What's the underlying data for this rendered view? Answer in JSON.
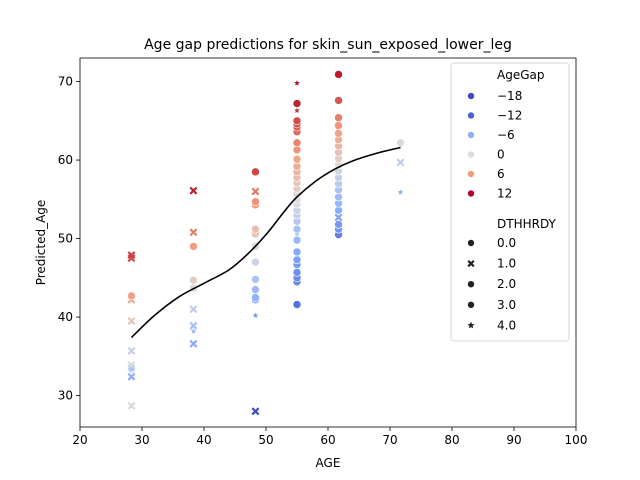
{
  "chart_data": {
    "type": "scatter",
    "title": "Age gap predictions for skin_sun_exposed_lower_leg",
    "xlabel": "AGE",
    "ylabel": "Predicted_Age",
    "xlim": [
      20,
      100
    ],
    "ylim": [
      26,
      73
    ],
    "xticks": [
      20,
      30,
      40,
      50,
      60,
      70,
      80,
      90,
      100
    ],
    "yticks": [
      30,
      40,
      50,
      60,
      70
    ],
    "grid": false,
    "legend": {
      "placement": "top-right",
      "hue_title": "AgeGap",
      "hue_entries": [
        {
          "label": "−18",
          "color": "#3b4cc0"
        },
        {
          "label": "−12",
          "color": "#4a63d3"
        },
        {
          "label": "−6",
          "color": "#8db0fe"
        },
        {
          "label": "0",
          "color": "#dcdddd"
        },
        {
          "label": "6",
          "color": "#f49a7b"
        },
        {
          "label": "12",
          "color": "#b40426"
        }
      ],
      "style_title": "DTHHRDY",
      "style_entries": [
        {
          "label": "0.0",
          "marker": "circle"
        },
        {
          "label": "1.0",
          "marker": "x"
        },
        {
          "label": "2.0",
          "marker": "circle"
        },
        {
          "label": "3.0",
          "marker": "circle"
        },
        {
          "label": "4.0",
          "marker": "star"
        }
      ]
    },
    "trend_line": {
      "color": "#000000",
      "points": [
        [
          28.3,
          37.4
        ],
        [
          32,
          40.2
        ],
        [
          36,
          42.6
        ],
        [
          40,
          44.3
        ],
        [
          44,
          46.0
        ],
        [
          47,
          48.0
        ],
        [
          50,
          50.5
        ],
        [
          53,
          53.5
        ],
        [
          55,
          55.3
        ],
        [
          58,
          57.3
        ],
        [
          61,
          58.8
        ],
        [
          64,
          59.9
        ],
        [
          68,
          60.9
        ],
        [
          71.7,
          61.6
        ]
      ]
    },
    "points": [
      {
        "x": 28.3,
        "y": 28.7,
        "gap": -0.4,
        "m": "x"
      },
      {
        "x": 28.3,
        "y": 32.4,
        "gap": -5.9,
        "m": "x"
      },
      {
        "x": 28.3,
        "y": 33.4,
        "gap": -4.1,
        "m": "circle"
      },
      {
        "x": 28.3,
        "y": 33.6,
        "gap": -3.8,
        "m": "circle"
      },
      {
        "x": 28.3,
        "y": 33.9,
        "gap": -0.5,
        "m": "x"
      },
      {
        "x": 28.3,
        "y": 35.7,
        "gap": -1.7,
        "m": "x"
      },
      {
        "x": 28.3,
        "y": 39.5,
        "gap": 2.1,
        "m": "x"
      },
      {
        "x": 28.3,
        "y": 42.2,
        "gap": 4.8,
        "m": "x"
      },
      {
        "x": 28.3,
        "y": 42.7,
        "gap": 5.3,
        "m": "circle"
      },
      {
        "x": 28.3,
        "y": 47.5,
        "gap": 10.1,
        "m": "x"
      },
      {
        "x": 28.3,
        "y": 47.9,
        "gap": 10.5,
        "m": "x"
      },
      {
        "x": 38.3,
        "y": 36.6,
        "gap": -6.5,
        "m": "x"
      },
      {
        "x": 38.3,
        "y": 38.2,
        "gap": -5.0,
        "m": "star"
      },
      {
        "x": 38.3,
        "y": 38.9,
        "gap": -4.3,
        "m": "x"
      },
      {
        "x": 38.3,
        "y": 41.0,
        "gap": -2.2,
        "m": "x"
      },
      {
        "x": 38.3,
        "y": 43.7,
        "gap": 0.5,
        "m": "circle"
      },
      {
        "x": 38.3,
        "y": 44.7,
        "gap": 1.5,
        "m": "circle"
      },
      {
        "x": 38.3,
        "y": 49.0,
        "gap": 5.8,
        "m": "circle"
      },
      {
        "x": 38.3,
        "y": 50.8,
        "gap": 7.6,
        "m": "x"
      },
      {
        "x": 38.3,
        "y": 56.1,
        "gap": 12.9,
        "m": "x"
      },
      {
        "x": 48.3,
        "y": 28.0,
        "gap": -20.3,
        "m": "x"
      },
      {
        "x": 48.3,
        "y": 40.2,
        "gap": -8.1,
        "m": "star"
      },
      {
        "x": 48.3,
        "y": 42.2,
        "gap": -6.1,
        "m": "circle"
      },
      {
        "x": 48.3,
        "y": 42.5,
        "gap": -5.8,
        "m": "circle"
      },
      {
        "x": 48.3,
        "y": 43.5,
        "gap": -4.8,
        "m": "circle"
      },
      {
        "x": 48.3,
        "y": 44.8,
        "gap": -3.5,
        "m": "circle"
      },
      {
        "x": 48.3,
        "y": 47.0,
        "gap": -1.3,
        "m": "circle"
      },
      {
        "x": 48.3,
        "y": 49.0,
        "gap": 0.7,
        "m": "circle"
      },
      {
        "x": 48.3,
        "y": 50.6,
        "gap": 2.3,
        "m": "circle"
      },
      {
        "x": 48.3,
        "y": 51.2,
        "gap": 2.9,
        "m": "circle"
      },
      {
        "x": 48.3,
        "y": 54.3,
        "gap": 6.0,
        "m": "circle"
      },
      {
        "x": 48.3,
        "y": 54.7,
        "gap": 6.4,
        "m": "circle"
      },
      {
        "x": 48.3,
        "y": 56.0,
        "gap": 7.7,
        "m": "x"
      },
      {
        "x": 48.3,
        "y": 58.5,
        "gap": 10.2,
        "m": "circle"
      },
      {
        "x": 55.0,
        "y": 41.6,
        "gap": -13.4,
        "m": "circle"
      },
      {
        "x": 55.0,
        "y": 44.5,
        "gap": -10.5,
        "m": "circle"
      },
      {
        "x": 55.0,
        "y": 45.0,
        "gap": -10.0,
        "m": "circle"
      },
      {
        "x": 55.0,
        "y": 45.7,
        "gap": -9.3,
        "m": "circle"
      },
      {
        "x": 55.0,
        "y": 46.7,
        "gap": -8.3,
        "m": "circle"
      },
      {
        "x": 55.0,
        "y": 47.3,
        "gap": -7.7,
        "m": "circle"
      },
      {
        "x": 55.0,
        "y": 48.3,
        "gap": -6.7,
        "m": "circle"
      },
      {
        "x": 55.0,
        "y": 49.8,
        "gap": -5.2,
        "m": "circle"
      },
      {
        "x": 55.0,
        "y": 50.6,
        "gap": -4.4,
        "m": "star"
      },
      {
        "x": 55.0,
        "y": 51.2,
        "gap": -3.8,
        "m": "circle"
      },
      {
        "x": 55.0,
        "y": 52.2,
        "gap": -2.8,
        "m": "circle"
      },
      {
        "x": 55.0,
        "y": 53.0,
        "gap": -2.0,
        "m": "circle"
      },
      {
        "x": 55.0,
        "y": 53.6,
        "gap": -1.4,
        "m": "circle"
      },
      {
        "x": 55.0,
        "y": 54.4,
        "gap": -0.6,
        "m": "circle"
      },
      {
        "x": 55.0,
        "y": 55.0,
        "gap": 0.0,
        "m": "circle"
      },
      {
        "x": 55.0,
        "y": 55.7,
        "gap": 0.7,
        "m": "circle"
      },
      {
        "x": 55.0,
        "y": 56.4,
        "gap": 1.4,
        "m": "circle"
      },
      {
        "x": 55.0,
        "y": 57.1,
        "gap": 2.1,
        "m": "circle"
      },
      {
        "x": 55.0,
        "y": 57.8,
        "gap": 2.8,
        "m": "circle"
      },
      {
        "x": 55.0,
        "y": 58.5,
        "gap": 3.5,
        "m": "circle"
      },
      {
        "x": 55.0,
        "y": 59.2,
        "gap": 4.2,
        "m": "circle"
      },
      {
        "x": 55.0,
        "y": 60.1,
        "gap": 5.1,
        "m": "circle"
      },
      {
        "x": 55.0,
        "y": 61.3,
        "gap": 6.3,
        "m": "circle"
      },
      {
        "x": 55.0,
        "y": 62.2,
        "gap": 7.2,
        "m": "circle"
      },
      {
        "x": 55.0,
        "y": 63.6,
        "gap": 8.6,
        "m": "circle"
      },
      {
        "x": 55.0,
        "y": 64.2,
        "gap": 9.2,
        "m": "circle"
      },
      {
        "x": 55.0,
        "y": 64.6,
        "gap": 9.6,
        "m": "circle"
      },
      {
        "x": 55.0,
        "y": 65.0,
        "gap": 10.0,
        "m": "circle"
      },
      {
        "x": 55.0,
        "y": 66.3,
        "gap": 11.3,
        "m": "star"
      },
      {
        "x": 55.0,
        "y": 67.2,
        "gap": 12.2,
        "m": "circle"
      },
      {
        "x": 55.0,
        "y": 69.8,
        "gap": 14.8,
        "m": "star"
      },
      {
        "x": 61.7,
        "y": 50.5,
        "gap": -11.2,
        "m": "circle"
      },
      {
        "x": 61.7,
        "y": 51.2,
        "gap": -9.0,
        "m": "circle"
      },
      {
        "x": 61.7,
        "y": 51.8,
        "gap": -8.4,
        "m": "circle"
      },
      {
        "x": 61.7,
        "y": 52.7,
        "gap": -7.3,
        "m": "x"
      },
      {
        "x": 61.7,
        "y": 53.6,
        "gap": -6.3,
        "m": "circle"
      },
      {
        "x": 61.7,
        "y": 54.5,
        "gap": -5.4,
        "m": "circle"
      },
      {
        "x": 61.7,
        "y": 55.3,
        "gap": -4.6,
        "m": "circle"
      },
      {
        "x": 61.7,
        "y": 56.2,
        "gap": -3.6,
        "m": "circle"
      },
      {
        "x": 61.7,
        "y": 57.0,
        "gap": -2.7,
        "m": "circle"
      },
      {
        "x": 61.7,
        "y": 57.8,
        "gap": -1.9,
        "m": "circle"
      },
      {
        "x": 61.7,
        "y": 58.6,
        "gap": -0.9,
        "m": "circle"
      },
      {
        "x": 61.7,
        "y": 59.4,
        "gap": 0.3,
        "m": "circle"
      },
      {
        "x": 61.7,
        "y": 60.2,
        "gap": 1.3,
        "m": "circle"
      },
      {
        "x": 61.7,
        "y": 61.0,
        "gap": 2.4,
        "m": "circle"
      },
      {
        "x": 61.7,
        "y": 61.8,
        "gap": 3.3,
        "m": "circle"
      },
      {
        "x": 61.7,
        "y": 62.6,
        "gap": 4.3,
        "m": "circle"
      },
      {
        "x": 61.7,
        "y": 63.4,
        "gap": 5.2,
        "m": "circle"
      },
      {
        "x": 61.7,
        "y": 64.4,
        "gap": 6.3,
        "m": "circle"
      },
      {
        "x": 61.7,
        "y": 65.4,
        "gap": 7.4,
        "m": "circle"
      },
      {
        "x": 61.7,
        "y": 67.6,
        "gap": 9.4,
        "m": "circle"
      },
      {
        "x": 61.7,
        "y": 70.9,
        "gap": 13.2,
        "m": "circle"
      },
      {
        "x": 71.7,
        "y": 55.9,
        "gap": -6.1,
        "m": "star"
      },
      {
        "x": 71.7,
        "y": 59.7,
        "gap": -2.2,
        "m": "x"
      },
      {
        "x": 71.7,
        "y": 62.2,
        "gap": 0.4,
        "m": "circle"
      }
    ]
  }
}
